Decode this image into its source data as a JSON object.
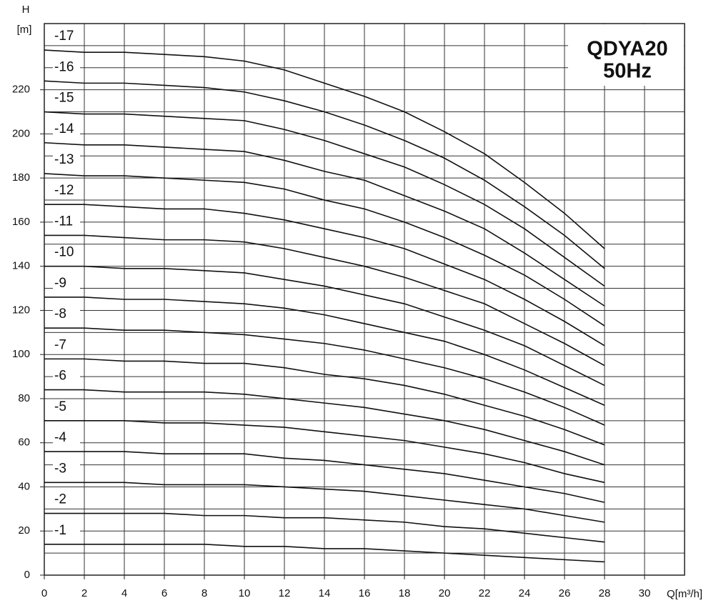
{
  "chart_data": {
    "type": "line",
    "title": "QDYA20",
    "subtitle": "50Hz",
    "y_axis_label": "H",
    "y_axis_unit": "[m]",
    "x_axis_label": "Q[m³/h]",
    "xlim": [
      0,
      32
    ],
    "ylim": [
      0,
      250
    ],
    "xticks": [
      0,
      2,
      4,
      6,
      8,
      10,
      12,
      14,
      16,
      18,
      20,
      22,
      24,
      26,
      28,
      30
    ],
    "yticks": [
      0,
      20,
      40,
      60,
      80,
      100,
      120,
      140,
      160,
      180,
      200,
      220
    ],
    "ygrid": [
      0,
      10,
      20,
      30,
      40,
      50,
      60,
      70,
      80,
      90,
      100,
      110,
      120,
      130,
      140,
      150,
      160,
      170,
      180,
      190,
      200,
      210,
      220,
      230,
      240
    ],
    "grid": true,
    "color": "#111111",
    "x": [
      0,
      2,
      4,
      6,
      8,
      10,
      12,
      14,
      16,
      18,
      20,
      22,
      24,
      26,
      28
    ],
    "series": [
      {
        "name": "-1",
        "values": [
          14,
          14,
          14,
          14,
          14,
          13,
          13,
          12,
          12,
          11,
          10,
          9,
          8,
          7,
          6
        ]
      },
      {
        "name": "-2",
        "values": [
          28,
          28,
          28,
          28,
          27,
          27,
          26,
          26,
          25,
          24,
          22,
          21,
          19,
          17,
          15
        ]
      },
      {
        "name": "-3",
        "values": [
          42,
          42,
          42,
          41,
          41,
          41,
          40,
          39,
          38,
          36,
          34,
          32,
          30,
          27,
          24
        ]
      },
      {
        "name": "-4",
        "values": [
          56,
          56,
          56,
          55,
          55,
          55,
          53,
          52,
          50,
          48,
          46,
          43,
          40,
          37,
          33
        ]
      },
      {
        "name": "-5",
        "values": [
          70,
          70,
          70,
          69,
          69,
          68,
          67,
          65,
          63,
          61,
          58,
          55,
          51,
          46,
          42
        ]
      },
      {
        "name": "-6",
        "values": [
          84,
          84,
          83,
          83,
          83,
          82,
          80,
          78,
          76,
          73,
          70,
          66,
          61,
          56,
          50
        ]
      },
      {
        "name": "-7",
        "values": [
          98,
          98,
          97,
          97,
          96,
          96,
          94,
          91,
          89,
          86,
          82,
          77,
          72,
          66,
          59
        ]
      },
      {
        "name": "-8",
        "values": [
          112,
          112,
          111,
          111,
          110,
          109,
          107,
          105,
          102,
          98,
          94,
          89,
          83,
          76,
          68
        ]
      },
      {
        "name": "-9",
        "values": [
          126,
          126,
          125,
          125,
          124,
          123,
          121,
          118,
          114,
          110,
          106,
          100,
          93,
          85,
          77
        ]
      },
      {
        "name": "-10",
        "values": [
          140,
          140,
          139,
          139,
          138,
          137,
          134,
          131,
          127,
          123,
          117,
          111,
          104,
          95,
          86
        ]
      },
      {
        "name": "-11",
        "values": [
          154,
          154,
          153,
          152,
          152,
          151,
          148,
          144,
          140,
          135,
          129,
          123,
          114,
          105,
          95
        ]
      },
      {
        "name": "-12",
        "values": [
          168,
          168,
          167,
          166,
          166,
          164,
          161,
          157,
          153,
          148,
          141,
          134,
          125,
          115,
          104
        ]
      },
      {
        "name": "-13",
        "values": [
          182,
          181,
          181,
          180,
          179,
          178,
          175,
          170,
          166,
          160,
          153,
          145,
          136,
          125,
          113
        ]
      },
      {
        "name": "-14",
        "values": [
          196,
          195,
          195,
          194,
          193,
          192,
          188,
          183,
          179,
          172,
          165,
          157,
          146,
          134,
          122
        ]
      },
      {
        "name": "-15",
        "values": [
          210,
          209,
          209,
          208,
          207,
          206,
          202,
          197,
          191,
          185,
          177,
          168,
          157,
          144,
          131
        ]
      },
      {
        "name": "-16",
        "values": [
          224,
          223,
          223,
          222,
          221,
          219,
          215,
          210,
          204,
          197,
          189,
          179,
          167,
          154,
          139
        ]
      },
      {
        "name": "-17",
        "values": [
          238,
          237,
          237,
          236,
          235,
          233,
          229,
          223,
          217,
          210,
          201,
          191,
          178,
          164,
          148
        ]
      }
    ]
  }
}
